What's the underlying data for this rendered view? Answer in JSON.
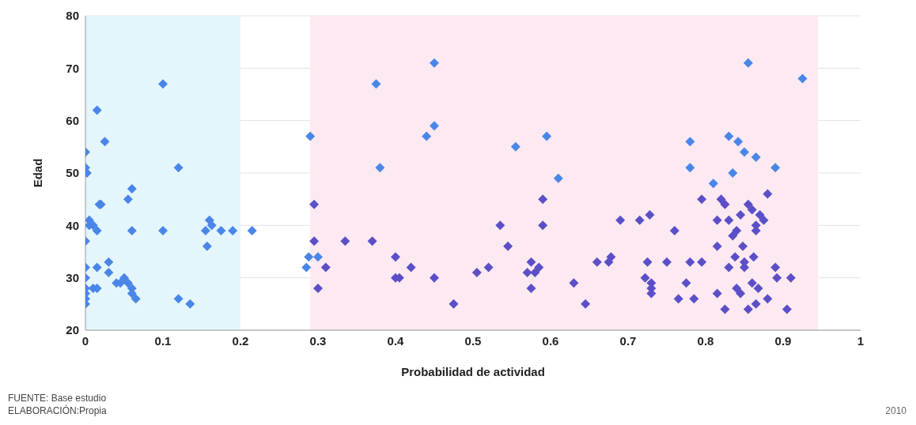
{
  "chart_data": {
    "type": "scatter",
    "xlabel": "Probabilidad  de actividad",
    "ylabel": "Edad",
    "xlim": [
      0,
      1
    ],
    "xticks": [
      0,
      0.1,
      0.2,
      0.3,
      0.4,
      0.5,
      0.6,
      0.7,
      0.8,
      0.9,
      1
    ],
    "ylim": [
      20,
      80
    ],
    "yticks": [
      20,
      30,
      40,
      50,
      60,
      70,
      80
    ],
    "grid": "y",
    "marker": "diamond",
    "series": [
      {
        "color": "#4a86e8",
        "x": [
          0,
          0.015,
          0.025,
          0,
          0.002,
          0.1,
          0.12,
          0.06,
          0.055,
          0.02,
          0.018,
          0.005,
          0.01,
          0.005,
          0.015,
          0,
          0.06,
          0.1,
          0.16,
          0.163,
          0.155,
          0.175,
          0.19,
          0.215,
          0.157,
          0,
          0.015,
          0.03,
          0.03,
          0.04,
          0.05,
          0.055,
          0.06,
          0.045,
          0.06,
          0.065,
          0.12,
          0.135,
          0,
          0,
          0.01,
          0.015,
          0,
          0,
          0,
          0.29,
          0.375,
          0.38,
          0.44,
          0.45,
          0.45,
          0.555,
          0.595,
          0.61,
          0.285,
          0.288,
          0.3,
          0.78,
          0.78,
          0.81,
          0.83,
          0.835,
          0.842,
          0.85,
          0.855,
          0.865,
          0.89,
          0.925
        ],
        "values": [
          54,
          62,
          56,
          51,
          50,
          67,
          51,
          47,
          45,
          44,
          44,
          41,
          40,
          40,
          39,
          37,
          39,
          39,
          41,
          40,
          39,
          39,
          39,
          39,
          36,
          32,
          32,
          33,
          31,
          29,
          30,
          29,
          28,
          29,
          27,
          26,
          26,
          25,
          30,
          28,
          28,
          28,
          27,
          26,
          25,
          57,
          67,
          51,
          57,
          59,
          71,
          55,
          57,
          49,
          32,
          34,
          34,
          56,
          51,
          48,
          57,
          50,
          56,
          54,
          71,
          53,
          51,
          68
        ]
      },
      {
        "color": "#5b4fc8",
        "x": [
          0.295,
          0.295,
          0.3,
          0.31,
          0.335,
          0.37,
          0.4,
          0.4,
          0.405,
          0.42,
          0.45,
          0.475,
          0.505,
          0.52,
          0.535,
          0.545,
          0.57,
          0.575,
          0.575,
          0.58,
          0.585,
          0.59,
          0.59,
          0.63,
          0.645,
          0.66,
          0.675,
          0.678,
          0.69,
          0.715,
          0.722,
          0.725,
          0.728,
          0.73,
          0.73,
          0.73,
          0.76,
          0.75,
          0.765,
          0.775,
          0.78,
          0.785,
          0.795,
          0.795,
          0.815,
          0.815,
          0.815,
          0.82,
          0.825,
          0.825,
          0.83,
          0.83,
          0.835,
          0.838,
          0.84,
          0.84,
          0.845,
          0.845,
          0.848,
          0.85,
          0.85,
          0.855,
          0.855,
          0.86,
          0.86,
          0.862,
          0.865,
          0.865,
          0.865,
          0.868,
          0.87,
          0.875,
          0.88,
          0.88,
          0.89,
          0.892,
          0.905,
          0.91
        ],
        "values": [
          44,
          37,
          28,
          32,
          37,
          37,
          34,
          30,
          30,
          32,
          30,
          25,
          31,
          32,
          40,
          36,
          31,
          33,
          28,
          31,
          32,
          45,
          40,
          29,
          25,
          33,
          33,
          34,
          41,
          41,
          30,
          33,
          42,
          29,
          28,
          27,
          39,
          33,
          26,
          29,
          33,
          26,
          33,
          45,
          41,
          36,
          27,
          45,
          44,
          24,
          41,
          32,
          38,
          34,
          39,
          28,
          27,
          42,
          36,
          33,
          32,
          44,
          24,
          43,
          29,
          34,
          40,
          39,
          25,
          28,
          42,
          41,
          46,
          26,
          32,
          30,
          24,
          30
        ]
      }
    ],
    "bands": [
      {
        "axis": "x",
        "from": 0,
        "to": 0.2,
        "color": "#e4f6fc"
      },
      {
        "axis": "x",
        "from": 0.29,
        "to": 0.945,
        "color": "#fce9f1"
      }
    ],
    "annotations": [
      "FUENTE: Base estudio",
      "ELABORACIÓN:Propia",
      "2010"
    ]
  }
}
